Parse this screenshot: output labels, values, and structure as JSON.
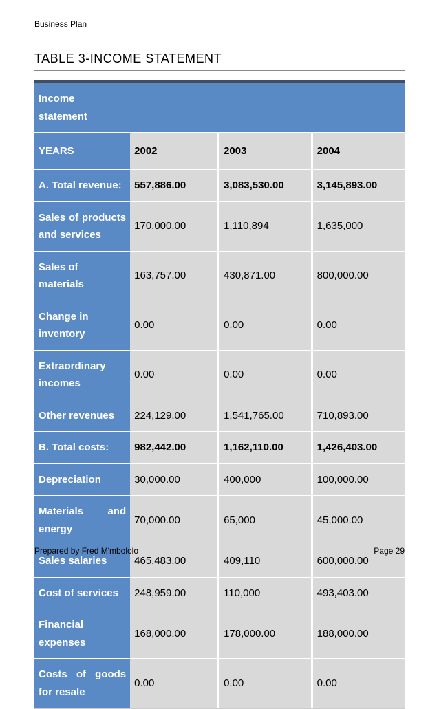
{
  "document": {
    "header": "Business Plan",
    "title": "TABLE 3-INCOME STATEMENT",
    "footer_left": "Prepared by Fred M'mbololo",
    "footer_right": "Page 29"
  },
  "table": {
    "subtitle": "Income statement",
    "years_label": "YEARS",
    "columns": [
      "2002",
      "2003",
      "2004"
    ],
    "rows": [
      {
        "label": "A. Total revenue:",
        "values": [
          "557,886.00",
          "3,083,530.00",
          "3,145,893.00"
        ],
        "bold": true
      },
      {
        "label": "Sales of products and services",
        "values": [
          "170,000.00",
          "1,110,894",
          "1,635,000"
        ],
        "justify": true
      },
      {
        "label": "Sales of materials",
        "values": [
          "163,757.00",
          "430,871.00",
          "800,000.00"
        ]
      },
      {
        "label": "Change in inventory",
        "values": [
          "0.00",
          "0.00",
          "0.00"
        ]
      },
      {
        "label": "Extraordinary incomes",
        "values": [
          "0.00",
          "0.00",
          "0.00"
        ]
      },
      {
        "label": "Other revenues",
        "values": [
          "224,129.00",
          "1,541,765.00",
          "710,893.00"
        ]
      },
      {
        "label": "B. Total costs:",
        "values": [
          "982,442.00",
          "1,162,110.00",
          "1,426,403.00"
        ],
        "bold": true
      },
      {
        "label": "Depreciation",
        "values": [
          "30,000.00",
          "400,000",
          "100,000.00"
        ]
      },
      {
        "label": "Materials and energy",
        "values": [
          "70,000.00",
          "65,000",
          "45,000.00"
        ],
        "justify": true
      },
      {
        "label": "Sales salaries",
        "values": [
          "465,483.00",
          "409,110",
          "600,000.00"
        ]
      },
      {
        "label": "Cost of services",
        "values": [
          "248,959.00",
          "110,000",
          "493,403.00"
        ]
      },
      {
        "label": "Financial expenses",
        "values": [
          "168,000.00",
          "178,000.00",
          "188,000.00"
        ]
      },
      {
        "label": "Costs of goods for resale",
        "values": [
          "0.00",
          "0.00",
          "0.00"
        ],
        "justify": true
      }
    ],
    "colors": {
      "label_bg": "#5a8ac6",
      "label_text": "#ffffff",
      "value_bg": "#d9d9d9",
      "value_text": "#000000",
      "top_border": "#404f63"
    }
  }
}
